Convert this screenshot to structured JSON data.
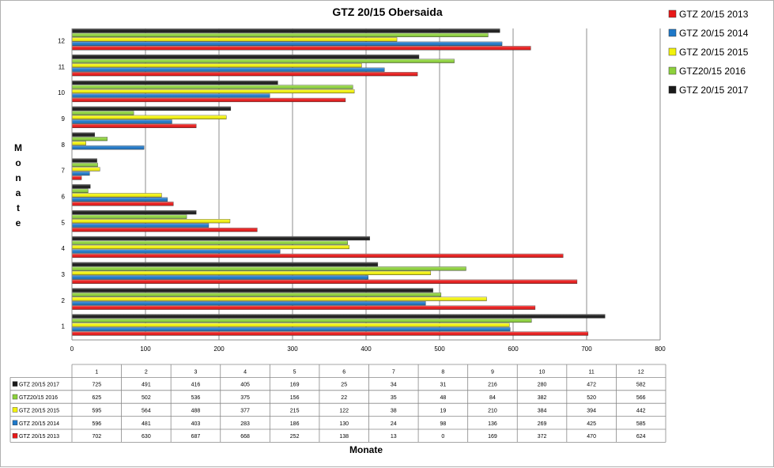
{
  "chart_data": {
    "type": "bar",
    "orientation": "horizontal",
    "title": "GTZ 20/15 Obersaida",
    "ylabel": "Monate",
    "xlabel": "Monate",
    "xlim": [
      0,
      800
    ],
    "x_ticks": [
      0,
      100,
      200,
      300,
      400,
      500,
      600,
      700,
      800
    ],
    "categories": [
      "1",
      "2",
      "3",
      "4",
      "5",
      "6",
      "7",
      "8",
      "9",
      "10",
      "11",
      "12"
    ],
    "series": [
      {
        "name": "GTZ 20/15 2017",
        "color": "#1a1a1a",
        "values": [
          725,
          491,
          416,
          405,
          169,
          25,
          34,
          31,
          216,
          280,
          472,
          582
        ]
      },
      {
        "name": "GTZ20/15 2016",
        "color": "#8dd13c",
        "values": [
          625,
          502,
          536,
          375,
          156,
          22,
          35,
          48,
          84,
          382,
          520,
          566
        ]
      },
      {
        "name": "GTZ 20/15 2015",
        "color": "#f2f20c",
        "values": [
          595,
          564,
          488,
          377,
          215,
          122,
          38,
          19,
          210,
          384,
          394,
          442
        ]
      },
      {
        "name": "GTZ 20/15 2014",
        "color": "#1e78c8",
        "values": [
          596,
          481,
          403,
          283,
          186,
          130,
          24,
          98,
          136,
          269,
          425,
          585
        ]
      },
      {
        "name": "GTZ 20/15 2013",
        "color": "#e81818",
        "values": [
          702,
          630,
          687,
          668,
          252,
          138,
          13,
          0,
          169,
          372,
          470,
          624
        ]
      }
    ],
    "grid": true,
    "legend_position": "top-right",
    "data_table": true
  }
}
